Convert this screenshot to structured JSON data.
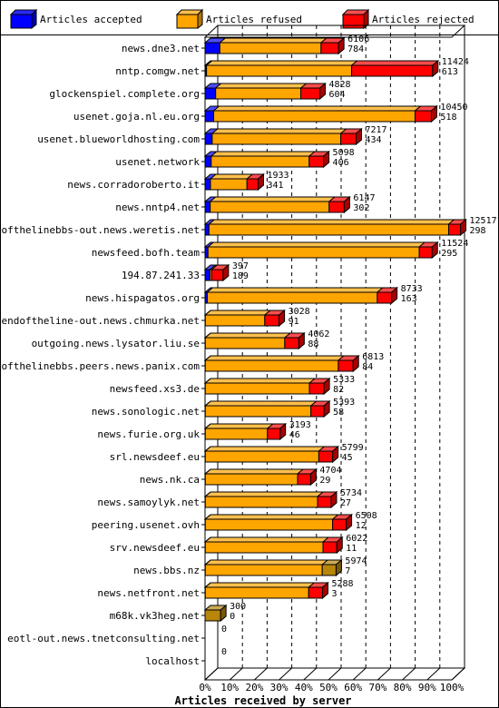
{
  "legend": {
    "accepted": "Articles accepted",
    "refused": "Articles refused",
    "rejected": "Articles rejected"
  },
  "colors": {
    "accepted": "#0000ff",
    "refused": "#ffa500",
    "rejected": "#ff0000",
    "other": "#b8860b"
  },
  "chart_data": {
    "type": "bar",
    "orientation": "horizontal",
    "stacked": true,
    "xlabel": "Articles received by server",
    "xlim": [
      0,
      100
    ],
    "x_ticks": [
      "0%",
      "10%",
      "20%",
      "30%",
      "40%",
      "50%",
      "60%",
      "70%",
      "80%",
      "90%",
      "100%"
    ],
    "grid": true,
    "legend_position": "top",
    "categories": [
      "news.dne3.net",
      "nntp.comgw.net",
      "glockenspiel.complete.org",
      "usenet.goja.nl.eu.org",
      "usenet.blueworldhosting.com",
      "usenet.network",
      "news.corradoroberto.it",
      "news.nntp4.net",
      "endofthelinebbs-out.news.weretis.net",
      "newsfeed.bofh.team",
      "194.87.241.33",
      "news.hispagatos.org",
      "endoftheline-out.news.chmurka.net",
      "outgoing.news.lysator.liu.se",
      "endofthelinebbs.peers.news.panix.com",
      "newsfeed.xs3.de",
      "news.sonologic.net",
      "news.furie.org.uk",
      "srl.newsdeef.eu",
      "news.nk.ca",
      "news.samoylyk.net",
      "peering.usenet.ovh",
      "srv.newsdeef.eu",
      "news.bbs.nz",
      "news.netfront.net",
      "m68k.vk3heg.net",
      "eotl-out.news.tnetconsulting.net",
      "localhost"
    ],
    "labels_top": [
      "6106",
      "11424",
      "4828",
      "10450",
      "7217",
      "5098",
      "1933",
      "6147",
      "12517",
      "11524",
      "397",
      "8733",
      "3028",
      "4062",
      "6813",
      "5333",
      "5393",
      "3193",
      "5799",
      "4704",
      "5734",
      "6508",
      "6022",
      "5974",
      "5288",
      "300",
      "0",
      "0"
    ],
    "labels_bottom": [
      "784",
      "613",
      "604",
      "518",
      "434",
      "406",
      "341",
      "302",
      "298",
      "295",
      "189",
      "163",
      "91",
      "88",
      "84",
      "82",
      "58",
      "46",
      "45",
      "29",
      "27",
      "12",
      "11",
      "7",
      "3",
      "0",
      "",
      ""
    ],
    "series": [
      {
        "name": "Articles accepted",
        "values": [
          6.0,
          0.6,
          4.3,
          3.5,
          2.9,
          2.5,
          2.2,
          2.1,
          1.6,
          1.2,
          2.0,
          0.9,
          0.1,
          0.1,
          0.1,
          0.1,
          0.1,
          0.1,
          0.1,
          0.1,
          0.1,
          0.1,
          0.1,
          0.1,
          0.1,
          0,
          0,
          0
        ]
      },
      {
        "name": "Articles refused",
        "values": [
          41.0,
          58.8,
          34.5,
          81.6,
          52.1,
          39.7,
          14.8,
          48.2,
          97.1,
          85.6,
          0.7,
          68.9,
          24.1,
          32.2,
          53.9,
          42.2,
          42.8,
          25.2,
          46.0,
          37.4,
          45.5,
          51.6,
          47.7,
          47.4,
          41.9,
          0,
          0,
          0
        ]
      },
      {
        "name": "Articles rejected",
        "values": [
          7.1,
          32.8,
          7.7,
          6.6,
          6.2,
          5.8,
          4.5,
          6.1,
          4.8,
          5.2,
          4.6,
          5.8,
          5.8,
          5.7,
          6.0,
          5.9,
          5.3,
          5.1,
          5.6,
          5.3,
          5.5,
          5.5,
          5.6,
          0,
          5.6,
          0,
          0,
          0
        ]
      },
      {
        "name": "",
        "values": [
          0,
          0,
          0,
          0,
          0,
          0,
          0,
          0,
          0,
          0,
          0,
          0,
          0,
          0,
          0,
          0,
          0,
          0,
          0,
          0,
          0,
          0,
          0,
          5.6,
          0,
          6.3,
          0,
          0
        ]
      }
    ]
  }
}
